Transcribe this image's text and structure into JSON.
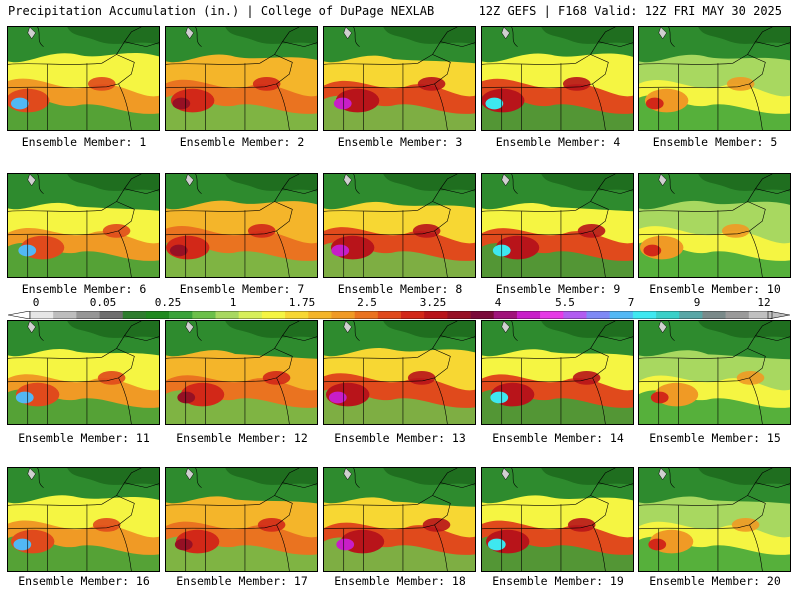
{
  "header": {
    "left": "Precipitation Accumulation (in.) | College of DuPage NEXLAB",
    "right": "12Z GEFS | F168 Valid: 12Z FRI MAY 30 2025"
  },
  "members": [
    {
      "label": "Ensemble Member: 1"
    },
    {
      "label": "Ensemble Member: 2"
    },
    {
      "label": "Ensemble Member: 3"
    },
    {
      "label": "Ensemble Member: 4"
    },
    {
      "label": "Ensemble Member: 5"
    },
    {
      "label": "Ensemble Member: 6"
    },
    {
      "label": "Ensemble Member: 7"
    },
    {
      "label": "Ensemble Member: 8"
    },
    {
      "label": "Ensemble Member: 9"
    },
    {
      "label": "Ensemble Member: 10"
    },
    {
      "label": "Ensemble Member: 11"
    },
    {
      "label": "Ensemble Member: 12"
    },
    {
      "label": "Ensemble Member: 13"
    },
    {
      "label": "Ensemble Member: 14"
    },
    {
      "label": "Ensemble Member: 15"
    },
    {
      "label": "Ensemble Member: 16"
    },
    {
      "label": "Ensemble Member: 17"
    },
    {
      "label": "Ensemble Member: 18"
    },
    {
      "label": "Ensemble Member: 19"
    },
    {
      "label": "Ensemble Member: 20"
    }
  ],
  "legend": {
    "ticks": [
      "0",
      "0.05",
      "0.25",
      "1",
      "1.75",
      "2.5",
      "3.25",
      "4",
      "5.5",
      "7",
      "9",
      "12"
    ],
    "colors": [
      "#e6e6e6",
      "#bdbdbd",
      "#969696",
      "#6e6e6e",
      "#2e7d2e",
      "#1f8a1f",
      "#3aa33a",
      "#6cc04a",
      "#a8d860",
      "#d7ef5a",
      "#f5f542",
      "#f7d733",
      "#f4b52a",
      "#f09a25",
      "#ea7320",
      "#e04a1c",
      "#d22818",
      "#b8141a",
      "#961024",
      "#7a0a3a",
      "#a0137a",
      "#c81ec8",
      "#e53ae5",
      "#b15cf0",
      "#7f8af5",
      "#52b8f5",
      "#3ee8f0",
      "#3ad0c8",
      "#58a6a6",
      "#7a8a8a",
      "#9a9a9a",
      "#c0c0c0"
    ]
  }
}
